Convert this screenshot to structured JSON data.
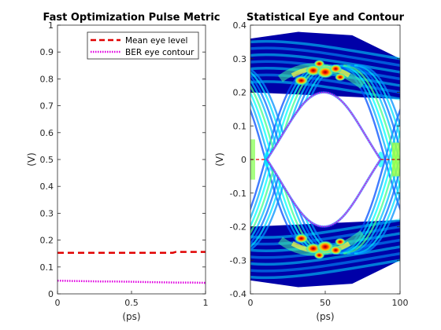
{
  "chart_data": [
    {
      "type": "line",
      "title": "Fast Optimization Pulse Metric",
      "xlabel": "(ps)",
      "ylabel": "(V)",
      "xlim": [
        0,
        1
      ],
      "ylim": [
        0,
        1
      ],
      "xticks": [
        "0",
        "0.5",
        "1"
      ],
      "yticks": [
        "0",
        "0.1",
        "0.2",
        "0.3",
        "0.4",
        "0.5",
        "0.6",
        "0.7",
        "0.8",
        "0.9",
        "1"
      ],
      "legend_position": "top-right",
      "series": [
        {
          "name": "Mean eye level",
          "color": "#e00000",
          "style": "dashed",
          "x": [
            0,
            0.1,
            0.2,
            0.3,
            0.4,
            0.5,
            0.6,
            0.7,
            0.78,
            0.8,
            0.9,
            1
          ],
          "y": [
            0.153,
            0.153,
            0.153,
            0.153,
            0.153,
            0.153,
            0.153,
            0.153,
            0.153,
            0.156,
            0.156,
            0.156
          ]
        },
        {
          "name": "BER eye contour",
          "color": "#e000e0",
          "style": "dotted",
          "x": [
            0,
            0.1,
            0.2,
            0.3,
            0.4,
            0.5,
            0.6,
            0.7,
            0.8,
            0.9,
            1
          ],
          "y": [
            0.049,
            0.048,
            0.047,
            0.046,
            0.046,
            0.045,
            0.044,
            0.043,
            0.042,
            0.042,
            0.041
          ]
        }
      ]
    },
    {
      "type": "heatmap",
      "title": "Statistical Eye and Contour",
      "xlabel": "(ps)",
      "ylabel": "(V)",
      "xlim": [
        0,
        100
      ],
      "ylim": [
        -0.4,
        0.4
      ],
      "xticks": [
        "0",
        "50",
        "100"
      ],
      "yticks": [
        "-0.4",
        "-0.3",
        "-0.2",
        "-0.1",
        "0",
        "0.1",
        "0.2",
        "0.3",
        "0.4"
      ],
      "colormap": "jet",
      "eye_contour": {
        "color": "#e000e0",
        "style": "dotted",
        "left_ps": 11,
        "right_ps": 87,
        "center_ps": 49,
        "top_v": 0.2,
        "bottom_v": -0.2
      },
      "mean_level_color": "#e00000"
    }
  ]
}
